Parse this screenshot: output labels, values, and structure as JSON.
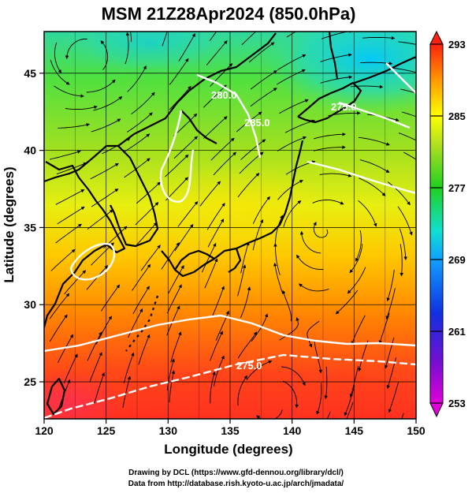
{
  "title": "MSM 21Z28Apr2024 (850.0hPa)",
  "xlabel": "Longitude (degrees)",
  "ylabel": "Latitude  (degrees)",
  "xticks": [
    "120",
    "125",
    "130",
    "135",
    "140",
    "145",
    "150"
  ],
  "yticks": [
    "25",
    "30",
    "35",
    "40",
    "45"
  ],
  "colorbar": {
    "ticks": [
      "253",
      "261",
      "269",
      "277",
      "285",
      "293"
    ]
  },
  "contours": {
    "labels": [
      "275.0",
      "275.0",
      "280.0",
      "285.0"
    ]
  },
  "footer": {
    "line1": "Drawing by DCL (https://www.gfd-dennou.org/library/dcl/)",
    "line2": "Data from http://database.rish.kyoto-u.ac.jp/arch/jmadata/"
  },
  "colors": {
    "cold": "#00c8ff",
    "mid": "#28d228",
    "warm": "#ffd700",
    "hot": "#ff3a1e"
  }
}
